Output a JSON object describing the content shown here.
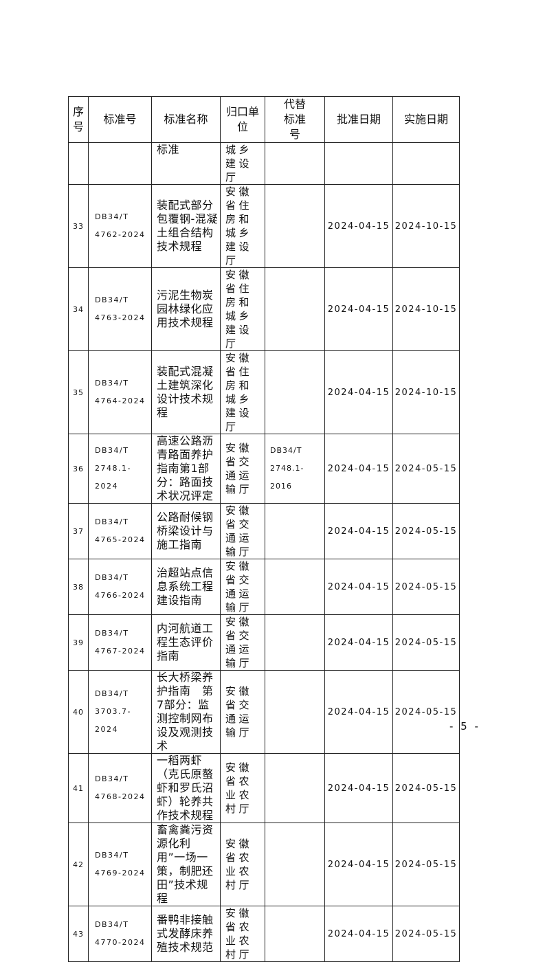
{
  "headers": {
    "no": "序号",
    "code": "标准号",
    "name": "标准名称",
    "org": "归口单位",
    "replace": "代替标准号",
    "approve": "批准日期",
    "implement": "实施日期"
  },
  "continuation": {
    "name": "标准",
    "org": "城乡建设厅"
  },
  "rows": [
    {
      "no": "33",
      "code1": "DB34/T",
      "code2": "4762-2024",
      "name": "装配式部分包覆钢-混凝土组合结构技术规程",
      "org": "安徽省住房和城乡建设厅",
      "replace1": "",
      "replace2": "",
      "approve": "2024-04-15",
      "implement": "2024-10-15"
    },
    {
      "no": "34",
      "code1": "DB34/T",
      "code2": "4763-2024",
      "name": "污泥生物炭园林绿化应用技术规程",
      "org": "安徽省住房和城乡建设厅",
      "replace1": "",
      "replace2": "",
      "approve": "2024-04-15",
      "implement": "2024-10-15"
    },
    {
      "no": "35",
      "code1": "DB34/T",
      "code2": "4764-2024",
      "name": "装配式混凝土建筑深化设计技术规程",
      "org": "安徽省住房和城乡建设厅",
      "replace1": "",
      "replace2": "",
      "approve": "2024-04-15",
      "implement": "2024-10-15"
    },
    {
      "no": "36",
      "code1": "DB34/T",
      "code2": "2748.1-2024",
      "name": "高速公路沥青路面养护指南第1部分：路面技术状况评定",
      "org": "安徽省交通运输厅",
      "replace1": "DB34/T",
      "replace2": "2748.1-2016",
      "approve": "2024-04-15",
      "implement": "2024-05-15"
    },
    {
      "no": "37",
      "code1": "DB34/T",
      "code2": "4765-2024",
      "name": "公路耐候钢桥梁设计与施工指南",
      "org": "安徽省交通运输厅",
      "replace1": "",
      "replace2": "",
      "approve": "2024-04-15",
      "implement": "2024-05-15"
    },
    {
      "no": "38",
      "code1": "DB34/T",
      "code2": "4766-2024",
      "name": "治超站点信息系统工程建设指南",
      "org": "安徽省交通运输厅",
      "replace1": "",
      "replace2": "",
      "approve": "2024-04-15",
      "implement": "2024-05-15"
    },
    {
      "no": "39",
      "code1": "DB34/T",
      "code2": "4767-2024",
      "name": "内河航道工程生态评价指南",
      "org": "安徽省交通运输厅",
      "replace1": "",
      "replace2": "",
      "approve": "2024-04-15",
      "implement": "2024-05-15"
    },
    {
      "no": "40",
      "code1": "DB34/T",
      "code2": "3703.7-2024",
      "name": "长大桥梁养护指南　第7部分：监测控制网布设及观测技术",
      "org": "安徽省交通运输厅",
      "replace1": "",
      "replace2": "",
      "approve": "2024-04-15",
      "implement": "2024-05-15"
    },
    {
      "no": "41",
      "code1": "DB34/T",
      "code2": "4768-2024",
      "name": "一稻两虾（克氏原螯虾和罗氏沼虾）轮养共作技术规程",
      "org": "安徽省农业农村厅",
      "replace1": "",
      "replace2": "",
      "approve": "2024-04-15",
      "implement": "2024-05-15"
    },
    {
      "no": "42",
      "code1": "DB34/T",
      "code2": "4769-2024",
      "name": "畜禽粪污资源化利用”一场一策，制肥还田”技术规程",
      "org": "安徽省农业农村厅",
      "replace1": "",
      "replace2": "",
      "approve": "2024-04-15",
      "implement": "2024-05-15"
    },
    {
      "no": "43",
      "code1": "DB34/T",
      "code2": "4770-2024",
      "name": "番鸭非接触式发酵床养殖技术规范",
      "org": "安徽省农业农村厅",
      "replace1": "",
      "replace2": "",
      "approve": "2024-04-15",
      "implement": "2024-05-15"
    }
  ],
  "page_number": "- 5 -"
}
